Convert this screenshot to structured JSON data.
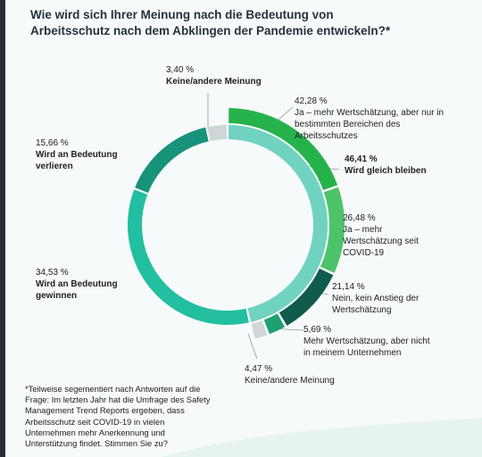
{
  "title": "Wie wird sich Ihrer Meinung nach die Bedeutung von Arbeitsschutz nach dem Abklingen der Pandemie entwickeln?*",
  "footnote": "*Teilweise segementiert nach Antworten auf die Frage: Im letzten Jahr hat die Umfrage des Safety Management Trend Reports ergeben, dass Arbeitsschutz seit COVID-19 in vielen Unternehmen mehr Anerkennung und Unterstützung findet. Stimmen Sie zu?",
  "chart_data": {
    "type": "pie",
    "outer_ring": [
      {
        "label": "Ja – mehr Wertschätzung, aber nur in bestimmten Bereichen des Arbeitsschutzes",
        "value": 42.28,
        "value_label": "42,28 %",
        "color": "#26b24b"
      },
      {
        "label": "Ja – mehr Wertschätzung seit COVID-19",
        "value": 26.48,
        "value_label": "26,48 %",
        "color": "#4cc46a"
      },
      {
        "label": "Nein, kein Anstieg der Wertschätzung",
        "value": 21.14,
        "value_label": "21,14 %",
        "color": "#0f5c4c"
      },
      {
        "label": "Mehr Wertschätzung, aber nicht in meinem Unternehmen",
        "value": 5.69,
        "value_label": "5,69 %",
        "color": "#1fa070"
      },
      {
        "label": "Keine/andere Meinung",
        "value": 4.47,
        "value_label": "4,47 %",
        "color": "#cfd6d8"
      }
    ],
    "outer_ring_share": 46.41,
    "inner_ring": [
      {
        "label": "Wird gleich bleiben",
        "value": 46.41,
        "value_label": "46,41 %",
        "color": "#6fd3bf"
      },
      {
        "label": "Wird an Bedeutung gewinnen",
        "value": 34.53,
        "value_label": "34,53 %",
        "color": "#22bfa0"
      },
      {
        "label": "Wird an Bedeutung verlieren",
        "value": 15.66,
        "value_label": "15,66 %",
        "color": "#17937a"
      },
      {
        "label": "Keine/andere Meinung",
        "value": 3.4,
        "value_label": "3,40 %",
        "color": "#cfd6d8"
      }
    ]
  },
  "labels": {
    "l1": {
      "pct": "42,28 %",
      "txt": "Ja – mehr Wertschätzung, aber nur in bestimmten Bereichen des Arbeitsschutzes"
    },
    "l2": {
      "pct": "46,41 %",
      "txt": "Wird gleich bleiben"
    },
    "l3": {
      "pct": "26,48 %",
      "txt": "Ja – mehr Wertschätzung seit COVID-19"
    },
    "l4": {
      "pct": "21,14 %",
      "txt": "Nein, kein Anstieg der Wertschätzung"
    },
    "l5": {
      "pct": "5,69 %",
      "txt": "Mehr Wertschätzung, aber nicht in meinem Unternehmen"
    },
    "l6": {
      "pct": "4,47 %",
      "txt": "Keine/andere Meinung"
    },
    "l7": {
      "pct": "34,53 %",
      "txt": "Wird an Bedeutung gewinnen"
    },
    "l8": {
      "pct": "15,66 %",
      "txt": "Wird an Bedeutung verlieren"
    },
    "l9": {
      "pct": "3,40 %",
      "txt": "Keine/andere Meinung"
    }
  }
}
